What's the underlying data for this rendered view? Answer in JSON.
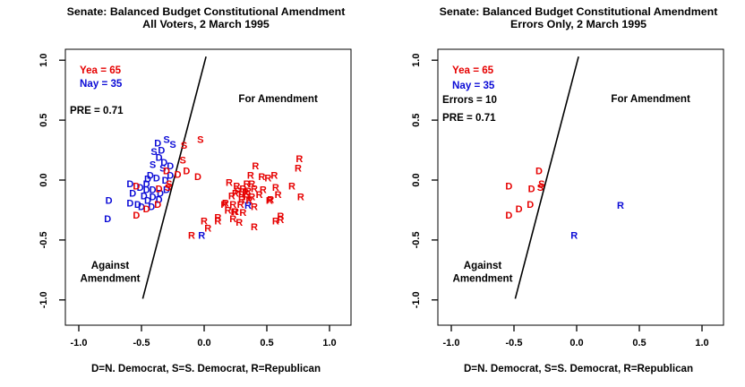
{
  "page": {
    "background": "#ffffff"
  },
  "colors": {
    "yea": "#e60000",
    "nay": "#0b0bd6",
    "ink": "#000000"
  },
  "chart_data": [
    {
      "type": "scatter",
      "title": "Senate: Balanced Budget Constitutional Amendment",
      "subtitle": "All Voters, 2 March 1995",
      "xlabel": "D=N. Democrat, S=S. Democrat, R=Republican",
      "xlim": [
        -1,
        1
      ],
      "ylim": [
        -1,
        1
      ],
      "xtick_labels": [
        "-1.0",
        "-0.5",
        "0.0",
        "0.5",
        "1.0"
      ],
      "ytick_labels": [
        "-1.0",
        "-0.5",
        "0.0",
        "0.5",
        "1.0"
      ],
      "xticks": [
        -1,
        -0.5,
        0,
        0.5,
        1
      ],
      "yticks": [
        -1,
        -0.5,
        0,
        0.5,
        1
      ],
      "grid": false,
      "legend_position": "top-left",
      "legend": [
        {
          "text": "Yea =  65",
          "color": "yea"
        },
        {
          "text": "Nay =  35",
          "color": "nay"
        },
        {
          "text": "PRE =  0.71",
          "color": "ink"
        }
      ],
      "annotations": [
        {
          "text": "For Amendment",
          "x": 0.59,
          "y": 0.68
        },
        {
          "text": "Against",
          "x": -0.75,
          "y": -0.71
        },
        {
          "text": "Amendment",
          "x": -0.75,
          "y": -0.82
        }
      ],
      "cut_line": {
        "x1": -0.49,
        "y1": -0.99,
        "x2": 0.015,
        "y2": 1.03
      },
      "points": [
        {
          "l": "S",
          "p": "nay",
          "x": -0.3,
          "y": 0.34
        },
        {
          "l": "S",
          "p": "nay",
          "x": -0.25,
          "y": 0.3
        },
        {
          "l": "D",
          "p": "nay",
          "x": -0.37,
          "y": 0.31
        },
        {
          "l": "S",
          "p": "nay",
          "x": -0.4,
          "y": 0.24
        },
        {
          "l": "D",
          "p": "nay",
          "x": -0.34,
          "y": 0.25
        },
        {
          "l": "D",
          "p": "nay",
          "x": -0.36,
          "y": 0.19
        },
        {
          "l": "S",
          "p": "nay",
          "x": -0.41,
          "y": 0.13
        },
        {
          "l": "D",
          "p": "nay",
          "x": -0.32,
          "y": 0.15
        },
        {
          "l": "S",
          "p": "nay",
          "x": -0.33,
          "y": 0.1
        },
        {
          "l": "D",
          "p": "nay",
          "x": -0.27,
          "y": 0.12
        },
        {
          "l": "D",
          "p": "nay",
          "x": -0.43,
          "y": 0.04
        },
        {
          "l": "D",
          "p": "nay",
          "x": -0.38,
          "y": 0.02
        },
        {
          "l": "D",
          "p": "nay",
          "x": -0.45,
          "y": 0.01
        },
        {
          "l": "D",
          "p": "nay",
          "x": -0.31,
          "y": 0.0
        },
        {
          "l": "D",
          "p": "nay",
          "x": -0.27,
          "y": 0.04
        },
        {
          "l": "D",
          "p": "nay",
          "x": -0.59,
          "y": -0.03
        },
        {
          "l": "D",
          "p": "nay",
          "x": -0.51,
          "y": -0.06
        },
        {
          "l": "D",
          "p": "nay",
          "x": -0.46,
          "y": -0.08
        },
        {
          "l": "D",
          "p": "nay",
          "x": -0.41,
          "y": -0.08
        },
        {
          "l": "D",
          "p": "nay",
          "x": -0.46,
          "y": -0.03
        },
        {
          "l": "D",
          "p": "nay",
          "x": -0.35,
          "y": -0.11
        },
        {
          "l": "D",
          "p": "nay",
          "x": -0.3,
          "y": -0.08
        },
        {
          "l": "D",
          "p": "nay",
          "x": -0.57,
          "y": -0.11
        },
        {
          "l": "D",
          "p": "nay",
          "x": -0.48,
          "y": -0.13
        },
        {
          "l": "D",
          "p": "nay",
          "x": -0.41,
          "y": -0.14
        },
        {
          "l": "D",
          "p": "nay",
          "x": -0.36,
          "y": -0.16
        },
        {
          "l": "D",
          "p": "nay",
          "x": -0.59,
          "y": -0.19
        },
        {
          "l": "D",
          "p": "nay",
          "x": -0.53,
          "y": -0.2
        },
        {
          "l": "D",
          "p": "nay",
          "x": -0.45,
          "y": -0.17
        },
        {
          "l": "D",
          "p": "nay",
          "x": -0.5,
          "y": -0.22
        },
        {
          "l": "D",
          "p": "nay",
          "x": -0.42,
          "y": -0.22
        },
        {
          "l": "D",
          "p": "nay",
          "x": -0.76,
          "y": -0.17
        },
        {
          "l": "D",
          "p": "nay",
          "x": -0.77,
          "y": -0.32
        },
        {
          "l": "R",
          "p": "nay",
          "x": 0.35,
          "y": -0.21
        },
        {
          "l": "R",
          "p": "nay",
          "x": -0.02,
          "y": -0.46
        },
        {
          "l": "D",
          "p": "yea",
          "x": -0.3,
          "y": 0.08
        },
        {
          "l": "S",
          "p": "yea",
          "x": -0.28,
          "y": -0.03
        },
        {
          "l": "S",
          "p": "yea",
          "x": -0.29,
          "y": -0.06
        },
        {
          "l": "D",
          "p": "yea",
          "x": -0.36,
          "y": -0.07
        },
        {
          "l": "D",
          "p": "yea",
          "x": -0.54,
          "y": -0.05
        },
        {
          "l": "D",
          "p": "yea",
          "x": -0.37,
          "y": -0.2
        },
        {
          "l": "D",
          "p": "yea",
          "x": -0.46,
          "y": -0.24
        },
        {
          "l": "D",
          "p": "yea",
          "x": -0.54,
          "y": -0.29
        },
        {
          "l": "S",
          "p": "yea",
          "x": -0.03,
          "y": 0.34
        },
        {
          "l": "S",
          "p": "yea",
          "x": -0.16,
          "y": 0.29
        },
        {
          "l": "S",
          "p": "yea",
          "x": -0.17,
          "y": 0.17
        },
        {
          "l": "D",
          "p": "yea",
          "x": -0.14,
          "y": 0.08
        },
        {
          "l": "D",
          "p": "yea",
          "x": -0.21,
          "y": 0.05
        },
        {
          "l": "D",
          "p": "yea",
          "x": -0.05,
          "y": 0.03
        },
        {
          "l": "R",
          "p": "yea",
          "x": 0.41,
          "y": 0.12
        },
        {
          "l": "R",
          "p": "yea",
          "x": 0.76,
          "y": 0.18
        },
        {
          "l": "R",
          "p": "yea",
          "x": 0.75,
          "y": 0.1
        },
        {
          "l": "R",
          "p": "yea",
          "x": 0.37,
          "y": 0.04
        },
        {
          "l": "R",
          "p": "yea",
          "x": 0.46,
          "y": 0.03
        },
        {
          "l": "R",
          "p": "yea",
          "x": 0.51,
          "y": 0.02
        },
        {
          "l": "R",
          "p": "yea",
          "x": 0.56,
          "y": 0.04
        },
        {
          "l": "R",
          "p": "yea",
          "x": 0.34,
          "y": -0.03
        },
        {
          "l": "R",
          "p": "yea",
          "x": 0.38,
          "y": -0.03
        },
        {
          "l": "R",
          "p": "yea",
          "x": 0.4,
          "y": -0.07
        },
        {
          "l": "R",
          "p": "yea",
          "x": 0.35,
          "y": -0.09
        },
        {
          "l": "R",
          "p": "yea",
          "x": 0.57,
          "y": -0.06
        },
        {
          "l": "R",
          "p": "yea",
          "x": 0.7,
          "y": -0.05
        },
        {
          "l": "R",
          "p": "yea",
          "x": 0.59,
          "y": -0.12
        },
        {
          "l": "R",
          "p": "yea",
          "x": 0.25,
          "y": -0.11
        },
        {
          "l": "R",
          "p": "yea",
          "x": 0.3,
          "y": -0.12
        },
        {
          "l": "R",
          "p": "yea",
          "x": 0.34,
          "y": -0.14
        },
        {
          "l": "R",
          "p": "yea",
          "x": 0.38,
          "y": -0.14
        },
        {
          "l": "R",
          "p": "yea",
          "x": 0.17,
          "y": -0.19
        },
        {
          "l": "R",
          "p": "yea",
          "x": 0.23,
          "y": -0.2
        },
        {
          "l": "R",
          "p": "yea",
          "x": 0.29,
          "y": -0.2
        },
        {
          "l": "R",
          "p": "yea",
          "x": 0.4,
          "y": -0.22
        },
        {
          "l": "R",
          "p": "yea",
          "x": 0.53,
          "y": -0.16
        },
        {
          "l": "R",
          "p": "yea",
          "x": 0.19,
          "y": -0.25
        },
        {
          "l": "R",
          "p": "yea",
          "x": 0.25,
          "y": -0.26
        },
        {
          "l": "R",
          "p": "yea",
          "x": 0.31,
          "y": -0.27
        },
        {
          "l": "R",
          "p": "yea",
          "x": 0.11,
          "y": -0.31
        },
        {
          "l": "R",
          "p": "yea",
          "x": 0.23,
          "y": -0.32
        },
        {
          "l": "R",
          "p": "yea",
          "x": 0.61,
          "y": -0.33
        },
        {
          "l": "R",
          "p": "yea",
          "x": 0.77,
          "y": -0.14
        },
        {
          "l": "R",
          "p": "yea",
          "x": 0.52,
          "y": -0.17
        },
        {
          "l": "R",
          "p": "yea",
          "x": 0.16,
          "y": -0.2
        },
        {
          "l": "R",
          "p": "yea",
          "x": 0.24,
          "y": -0.26
        },
        {
          "l": "R",
          "p": "yea",
          "x": 0.28,
          "y": -0.35
        },
        {
          "l": "R",
          "p": "yea",
          "x": 0.0,
          "y": -0.34
        },
        {
          "l": "R",
          "p": "yea",
          "x": 0.03,
          "y": -0.4
        },
        {
          "l": "R",
          "p": "yea",
          "x": 0.11,
          "y": -0.34
        },
        {
          "l": "R",
          "p": "yea",
          "x": 0.4,
          "y": -0.39
        },
        {
          "l": "R",
          "p": "yea",
          "x": 0.57,
          "y": -0.34
        },
        {
          "l": "R",
          "p": "yea",
          "x": 0.61,
          "y": -0.3
        },
        {
          "l": "R",
          "p": "yea",
          "x": -0.1,
          "y": -0.46
        },
        {
          "l": "R",
          "p": "yea",
          "x": 0.2,
          "y": -0.02
        },
        {
          "l": "R",
          "p": "yea",
          "x": 0.26,
          "y": -0.05
        },
        {
          "l": "R",
          "p": "yea",
          "x": 0.31,
          "y": -0.07
        },
        {
          "l": "R",
          "p": "yea",
          "x": 0.27,
          "y": -0.09
        },
        {
          "l": "R",
          "p": "yea",
          "x": 0.22,
          "y": -0.13
        },
        {
          "l": "R",
          "p": "yea",
          "x": 0.33,
          "y": -0.1
        },
        {
          "l": "R",
          "p": "yea",
          "x": 0.36,
          "y": -0.17
        },
        {
          "l": "R",
          "p": "yea",
          "x": 0.3,
          "y": -0.16
        },
        {
          "l": "R",
          "p": "yea",
          "x": 0.44,
          "y": -0.12
        },
        {
          "l": "R",
          "p": "yea",
          "x": 0.47,
          "y": -0.08
        }
      ]
    },
    {
      "type": "scatter",
      "title": "Senate: Balanced Budget Constitutional Amendment",
      "subtitle": "Errors Only, 2 March 1995",
      "xlabel": "D=N. Democrat, S=S. Democrat, R=Republican",
      "xlim": [
        -1,
        1
      ],
      "ylim": [
        -1,
        1
      ],
      "xtick_labels": [
        "-1.0",
        "-0.5",
        "0.0",
        "0.5",
        "1.0"
      ],
      "ytick_labels": [
        "-1.0",
        "-0.5",
        "0.0",
        "0.5",
        "1.0"
      ],
      "xticks": [
        -1,
        -0.5,
        0,
        0.5,
        1
      ],
      "yticks": [
        -1,
        -0.5,
        0,
        0.5,
        1
      ],
      "grid": false,
      "legend_position": "top-left",
      "legend": [
        {
          "text": "Yea =  65",
          "color": "yea"
        },
        {
          "text": "Nay =  35",
          "color": "nay"
        },
        {
          "text": "Errors =  10",
          "color": "ink"
        },
        {
          "text": "PRE =  0.71",
          "color": "ink"
        }
      ],
      "annotations": [
        {
          "text": "For Amendment",
          "x": 0.59,
          "y": 0.68
        },
        {
          "text": "Against",
          "x": -0.75,
          "y": -0.71
        },
        {
          "text": "Amendment",
          "x": -0.75,
          "y": -0.82
        }
      ],
      "cut_line": {
        "x1": -0.49,
        "y1": -0.99,
        "x2": 0.015,
        "y2": 1.03
      },
      "points": [
        {
          "l": "D",
          "p": "yea",
          "x": -0.3,
          "y": 0.08
        },
        {
          "l": "S",
          "p": "yea",
          "x": -0.28,
          "y": -0.03
        },
        {
          "l": "S",
          "p": "yea",
          "x": -0.29,
          "y": -0.06
        },
        {
          "l": "D",
          "p": "yea",
          "x": -0.36,
          "y": -0.07
        },
        {
          "l": "D",
          "p": "yea",
          "x": -0.54,
          "y": -0.05
        },
        {
          "l": "D",
          "p": "yea",
          "x": -0.37,
          "y": -0.2
        },
        {
          "l": "D",
          "p": "yea",
          "x": -0.46,
          "y": -0.24
        },
        {
          "l": "D",
          "p": "yea",
          "x": -0.54,
          "y": -0.29
        },
        {
          "l": "R",
          "p": "nay",
          "x": 0.35,
          "y": -0.21
        },
        {
          "l": "R",
          "p": "nay",
          "x": -0.02,
          "y": -0.46
        }
      ]
    }
  ]
}
